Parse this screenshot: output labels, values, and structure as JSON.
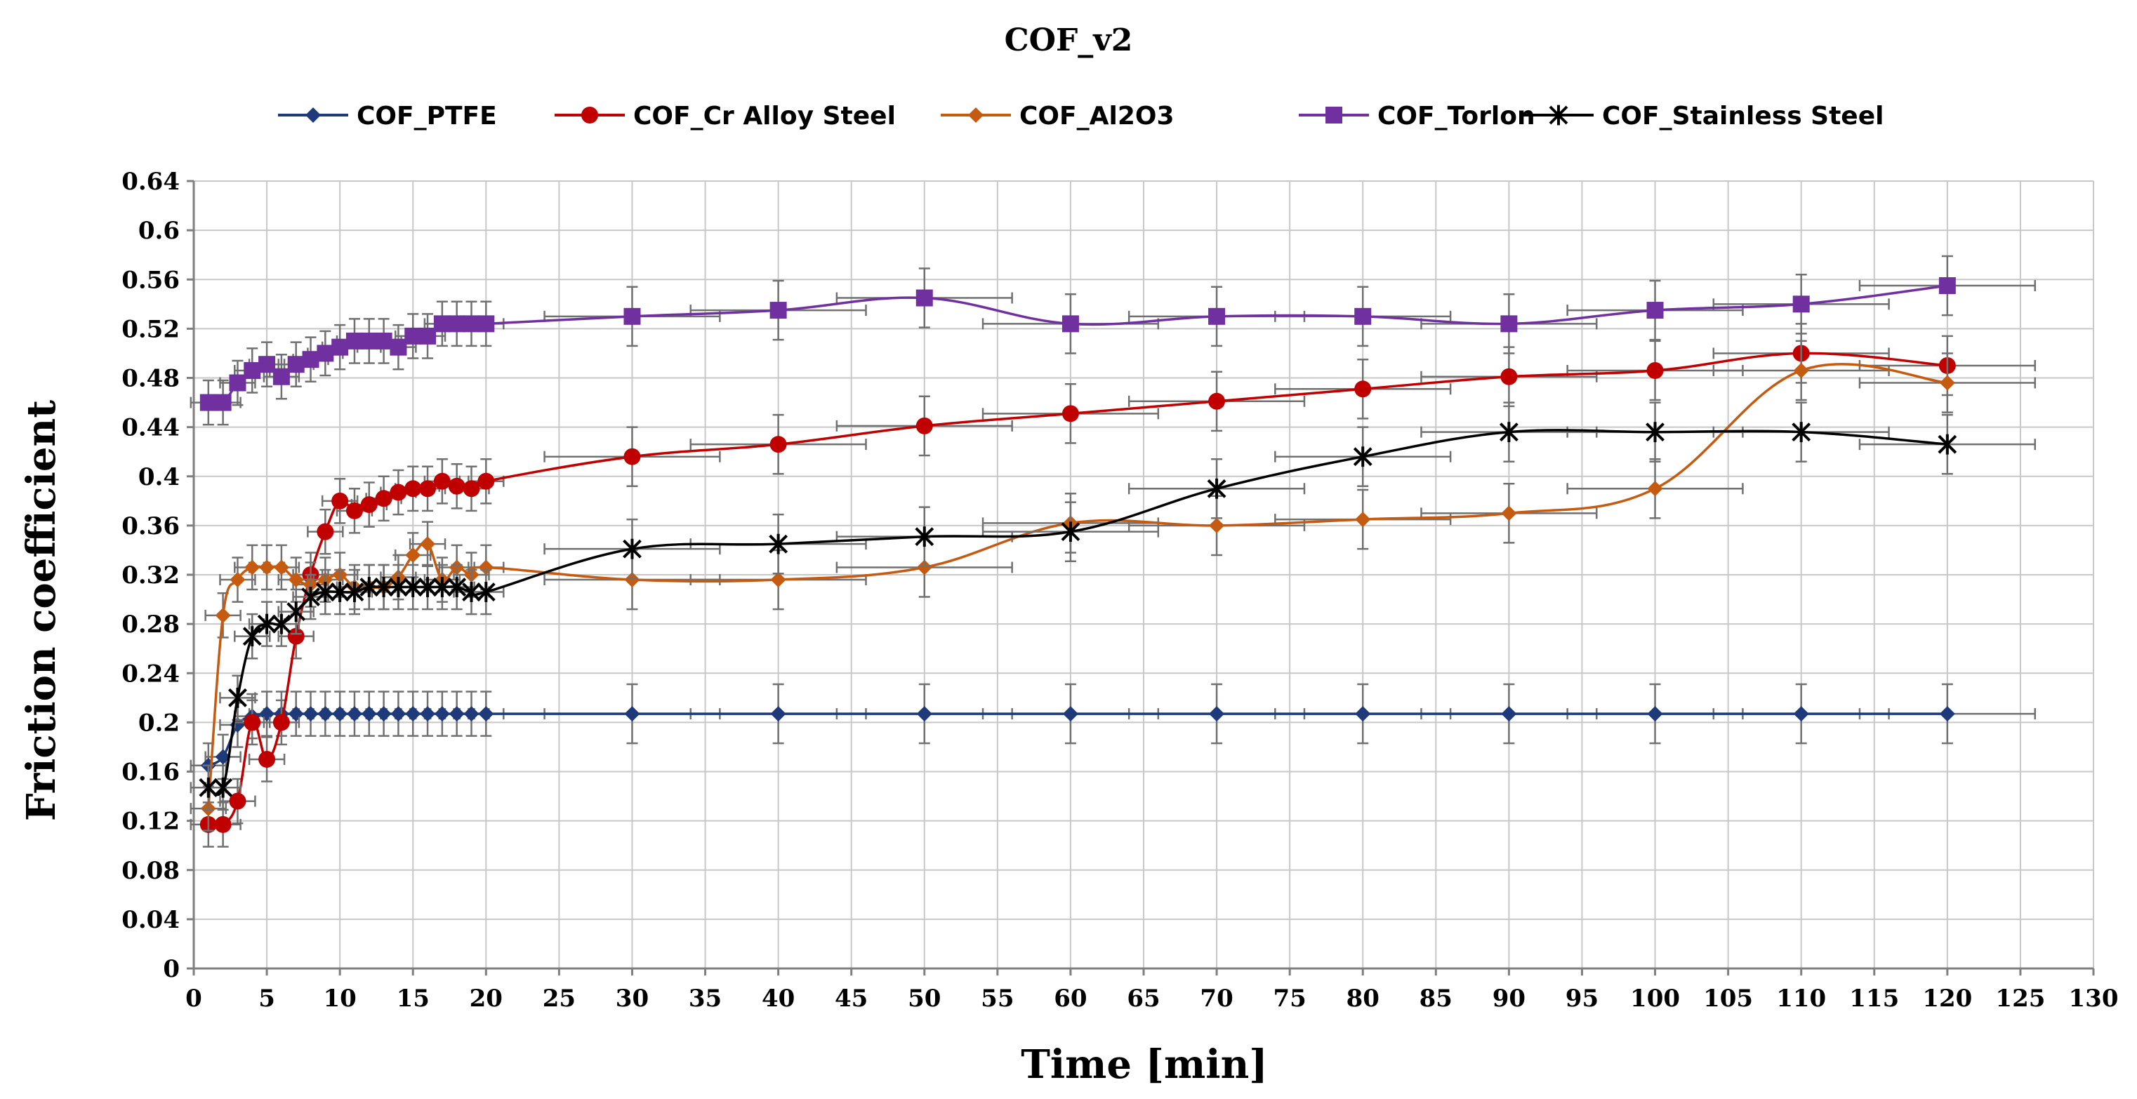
{
  "chart_data": {
    "type": "line",
    "title": "COF_v2",
    "xlabel": "Time [min]",
    "ylabel": "Friction coefficient",
    "xlim": [
      0,
      130
    ],
    "ylim": [
      0,
      0.64
    ],
    "x_ticks": [
      "0",
      "5",
      "10",
      "15",
      "20",
      "25",
      "30",
      "35",
      "40",
      "45",
      "50",
      "55",
      "60",
      "65",
      "70",
      "75",
      "80",
      "85",
      "90",
      "95",
      "100",
      "105",
      "110",
      "115",
      "120",
      "125",
      "130"
    ],
    "y_ticks": [
      "0",
      "0.04",
      "0.08",
      "0.12",
      "0.16",
      "0.2",
      "0.24",
      "0.28",
      "0.32",
      "0.36",
      "0.4",
      "0.44",
      "0.48",
      "0.52",
      "0.56",
      "0.6",
      "0.64"
    ],
    "grid": true,
    "legend_position": "top",
    "series": [
      {
        "name": "COF_PTFE",
        "color": "#1f3a7a",
        "marker": "diamond",
        "x": [
          1,
          2,
          3,
          4,
          5,
          6,
          7,
          8,
          9,
          10,
          11,
          12,
          13,
          14,
          15,
          16,
          17,
          18,
          19,
          20,
          30,
          40,
          50,
          60,
          70,
          80,
          90,
          100,
          110,
          120
        ],
        "values": [
          0.165,
          0.172,
          0.198,
          0.205,
          0.207,
          0.207,
          0.207,
          0.207,
          0.207,
          0.207,
          0.207,
          0.207,
          0.207,
          0.207,
          0.207,
          0.207,
          0.207,
          0.207,
          0.207,
          0.207,
          0.207,
          0.207,
          0.207,
          0.207,
          0.207,
          0.207,
          0.207,
          0.207,
          0.207,
          0.207
        ]
      },
      {
        "name": "COF_Cr Alloy Steel",
        "color": "#c00000",
        "marker": "circle",
        "x": [
          1,
          2,
          3,
          4,
          5,
          6,
          7,
          8,
          9,
          10,
          11,
          12,
          13,
          14,
          15,
          16,
          17,
          18,
          19,
          20,
          30,
          40,
          50,
          60,
          70,
          80,
          90,
          100,
          110,
          120
        ],
        "values": [
          0.117,
          0.117,
          0.136,
          0.2,
          0.17,
          0.2,
          0.27,
          0.32,
          0.355,
          0.38,
          0.372,
          0.377,
          0.382,
          0.387,
          0.39,
          0.39,
          0.396,
          0.392,
          0.39,
          0.396,
          0.416,
          0.426,
          0.441,
          0.451,
          0.461,
          0.471,
          0.481,
          0.486,
          0.5,
          0.49
        ]
      },
      {
        "name": "COF_Al2O3",
        "color": "#c55a11",
        "marker": "diamond",
        "x": [
          1,
          2,
          3,
          4,
          5,
          6,
          7,
          8,
          9,
          10,
          11,
          12,
          13,
          14,
          15,
          16,
          17,
          18,
          19,
          20,
          30,
          40,
          50,
          60,
          70,
          80,
          90,
          100,
          110,
          120
        ],
        "values": [
          0.13,
          0.287,
          0.316,
          0.326,
          0.326,
          0.326,
          0.316,
          0.312,
          0.316,
          0.32,
          0.31,
          0.31,
          0.31,
          0.318,
          0.336,
          0.345,
          0.316,
          0.326,
          0.32,
          0.326,
          0.316,
          0.316,
          0.326,
          0.362,
          0.36,
          0.365,
          0.37,
          0.39,
          0.486,
          0.476
        ]
      },
      {
        "name": "COF_Torlon",
        "color": "#7030a0",
        "marker": "square",
        "x": [
          1,
          2,
          3,
          4,
          5,
          6,
          7,
          8,
          9,
          10,
          11,
          12,
          13,
          14,
          15,
          16,
          17,
          18,
          19,
          20,
          30,
          40,
          50,
          60,
          70,
          80,
          90,
          100,
          110,
          120
        ],
        "values": [
          0.46,
          0.46,
          0.476,
          0.486,
          0.491,
          0.481,
          0.491,
          0.495,
          0.5,
          0.505,
          0.51,
          0.51,
          0.51,
          0.505,
          0.514,
          0.514,
          0.524,
          0.524,
          0.524,
          0.524,
          0.53,
          0.535,
          0.545,
          0.524,
          0.53,
          0.53,
          0.524,
          0.535,
          0.54,
          0.555
        ]
      },
      {
        "name": "COF_Stainless Steel",
        "color": "#000000",
        "marker": "star",
        "x": [
          1,
          2,
          3,
          4,
          5,
          6,
          7,
          8,
          9,
          10,
          11,
          12,
          13,
          14,
          15,
          16,
          17,
          18,
          19,
          20,
          30,
          40,
          50,
          60,
          70,
          80,
          90,
          100,
          110,
          120
        ],
        "values": [
          0.147,
          0.147,
          0.22,
          0.27,
          0.28,
          0.28,
          0.29,
          0.302,
          0.306,
          0.306,
          0.306,
          0.31,
          0.31,
          0.31,
          0.31,
          0.31,
          0.31,
          0.31,
          0.306,
          0.306,
          0.341,
          0.345,
          0.351,
          0.355,
          0.39,
          0.416,
          0.436,
          0.436,
          0.436,
          0.426
        ]
      }
    ]
  }
}
